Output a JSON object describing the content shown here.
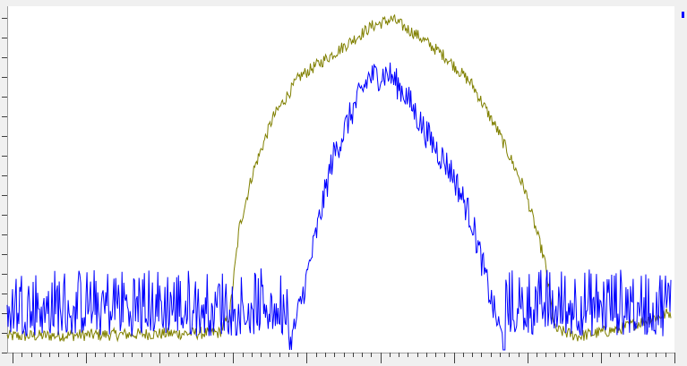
{
  "window": {
    "background": "#f0f0f0",
    "plot_background": "#ffffff",
    "frame_color": "#a0a0a0"
  },
  "legend": {
    "marker_color": "#0000ff",
    "marker_icon": "legend-square-icon"
  },
  "chart_data": {
    "type": "line",
    "title": "",
    "xlabel": "",
    "ylabel": "",
    "grid": false,
    "xlim": [
      0,
      1
    ],
    "ylim": [
      0,
      1
    ],
    "x_minor_ticks": 72,
    "x_major_tick_interval": 8,
    "y_ticks": 17,
    "series": [
      {
        "color": "#808000",
        "profile": [
          [
            0.0,
            0.04
          ],
          [
            0.32,
            0.05
          ],
          [
            0.335,
            0.1
          ],
          [
            0.35,
            0.36
          ],
          [
            0.37,
            0.52
          ],
          [
            0.4,
            0.68
          ],
          [
            0.44,
            0.8
          ],
          [
            0.5,
            0.88
          ],
          [
            0.55,
            0.95
          ],
          [
            0.58,
            0.97
          ],
          [
            0.62,
            0.92
          ],
          [
            0.66,
            0.86
          ],
          [
            0.7,
            0.78
          ],
          [
            0.74,
            0.64
          ],
          [
            0.78,
            0.47
          ],
          [
            0.81,
            0.26
          ],
          [
            0.825,
            0.06
          ],
          [
            0.86,
            0.04
          ],
          [
            0.92,
            0.06
          ],
          [
            1.0,
            0.11
          ]
        ],
        "noise": 0.018
      },
      {
        "color": "#0000ff",
        "profile": [
          [
            0.0,
            -0.16
          ],
          [
            0.41,
            -0.14
          ],
          [
            0.43,
            0.04
          ],
          [
            0.45,
            0.2
          ],
          [
            0.47,
            0.38
          ],
          [
            0.49,
            0.56
          ],
          [
            0.52,
            0.7
          ],
          [
            0.545,
            0.8
          ],
          [
            0.575,
            0.81
          ],
          [
            0.6,
            0.75
          ],
          [
            0.63,
            0.64
          ],
          [
            0.67,
            0.52
          ],
          [
            0.7,
            0.38
          ],
          [
            0.73,
            0.14
          ],
          [
            0.76,
            -0.06
          ],
          [
            0.775,
            -0.16
          ],
          [
            1.0,
            -0.16
          ]
        ],
        "noise": 0.045,
        "floor_noise": 0.1
      }
    ]
  }
}
